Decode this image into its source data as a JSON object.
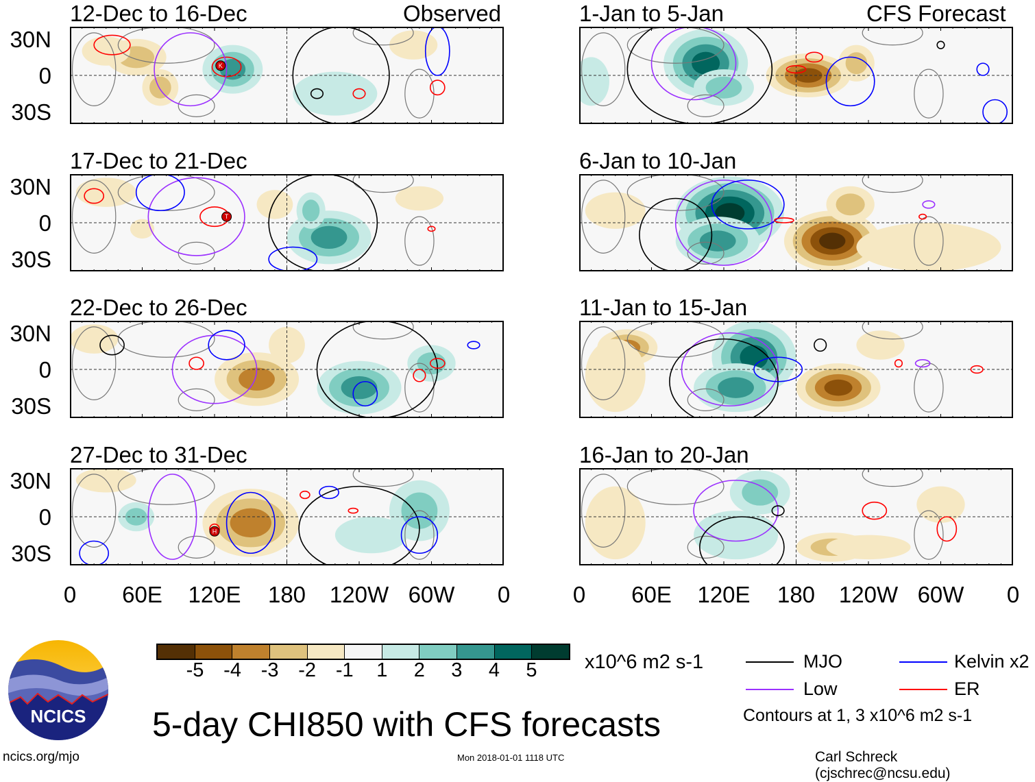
{
  "header": {
    "observed_label": "Observed",
    "forecast_label": "CFS Forecast"
  },
  "lat_labels": [
    "30N",
    "0",
    "30S"
  ],
  "lon_labels": [
    "0",
    "60E",
    "120E",
    "180",
    "120W",
    "60W",
    "0"
  ],
  "colors": {
    "levels": [
      "#543005",
      "#8c510a",
      "#bf812d",
      "#dfc27d",
      "#f6e8c3",
      "#f5f5f5",
      "#c7eae5",
      "#80cdc1",
      "#35978f",
      "#01665e",
      "#003c30"
    ],
    "mjo": "#000000",
    "low": "#9b30ff",
    "kelvin": "#0000ff",
    "er": "#ff0000",
    "land": "#777777"
  },
  "panels": [
    {
      "title": "12-Dec to 16-Dec",
      "blobs": [
        [
          55,
          15,
          25,
          15,
          -2
        ],
        [
          75,
          -10,
          15,
          15,
          -2
        ],
        [
          135,
          5,
          25,
          20,
          3
        ],
        [
          220,
          -15,
          35,
          18,
          1
        ],
        [
          285,
          25,
          20,
          12,
          -1
        ],
        [
          30,
          20,
          20,
          12,
          -1
        ]
      ],
      "contours": [
        [
          "er",
          130,
          7,
          12,
          8
        ],
        [
          "low",
          100,
          5,
          30,
          30
        ],
        [
          "mjo",
          225,
          0,
          40,
          40
        ],
        [
          "kelvin",
          305,
          20,
          10,
          20
        ],
        [
          "er",
          305,
          -10,
          6,
          6
        ],
        [
          "er",
          240,
          -15,
          5,
          4
        ],
        [
          "mjo",
          205,
          -15,
          5,
          4
        ],
        [
          "er",
          35,
          25,
          15,
          8
        ]
      ],
      "storms": [
        [
          125,
          8,
          "K"
        ]
      ]
    },
    {
      "title": "17-Dec to 21-Dec",
      "blobs": [
        [
          215,
          -12,
          35,
          22,
          3
        ],
        [
          200,
          10,
          12,
          15,
          2
        ],
        [
          30,
          25,
          25,
          12,
          -1
        ],
        [
          290,
          20,
          20,
          10,
          -1
        ],
        [
          60,
          -5,
          10,
          8,
          -1
        ],
        [
          170,
          15,
          15,
          12,
          -1
        ]
      ],
      "contours": [
        [
          "er",
          120,
          5,
          12,
          8
        ],
        [
          "low",
          105,
          5,
          40,
          32
        ],
        [
          "mjo",
          210,
          0,
          45,
          40
        ],
        [
          "kelvin",
          185,
          -30,
          20,
          10
        ],
        [
          "er",
          20,
          22,
          8,
          6
        ],
        [
          "kelvin",
          75,
          25,
          20,
          15
        ],
        [
          "er",
          300,
          -5,
          3,
          2
        ]
      ],
      "storms": [
        [
          130,
          5,
          "T"
        ]
      ]
    },
    {
      "title": "22-Dec to 26-Dec",
      "blobs": [
        [
          155,
          -8,
          35,
          22,
          -3
        ],
        [
          240,
          -15,
          35,
          22,
          3
        ],
        [
          300,
          5,
          20,
          15,
          2
        ],
        [
          20,
          25,
          20,
          12,
          -1
        ],
        [
          180,
          20,
          15,
          15,
          -1
        ]
      ],
      "contours": [
        [
          "low",
          120,
          0,
          35,
          28
        ],
        [
          "mjo",
          255,
          0,
          50,
          40
        ],
        [
          "kelvin",
          245,
          -20,
          10,
          10
        ],
        [
          "er",
          105,
          5,
          6,
          5
        ],
        [
          "er",
          305,
          5,
          6,
          4
        ],
        [
          "er",
          290,
          -5,
          5,
          5
        ],
        [
          "kelvin",
          335,
          20,
          5,
          3
        ],
        [
          "mjo",
          35,
          20,
          10,
          8
        ],
        [
          "kelvin",
          130,
          20,
          15,
          12
        ]
      ],
      "storms": []
    },
    {
      "title": "27-Dec to 31-Dec",
      "blobs": [
        [
          150,
          -5,
          40,
          28,
          -3
        ],
        [
          250,
          -15,
          30,
          15,
          1
        ],
        [
          290,
          5,
          25,
          25,
          2
        ],
        [
          55,
          0,
          15,
          12,
          2
        ],
        [
          30,
          30,
          25,
          10,
          -1
        ]
      ],
      "contours": [
        [
          "kelvin",
          150,
          -5,
          20,
          25
        ],
        [
          "low",
          85,
          0,
          20,
          35
        ],
        [
          "mjo",
          240,
          -10,
          50,
          35
        ],
        [
          "kelvin",
          290,
          -15,
          15,
          15
        ],
        [
          "kelvin",
          215,
          20,
          8,
          5
        ],
        [
          "er",
          195,
          18,
          4,
          3
        ],
        [
          "er",
          120,
          -10,
          4,
          4
        ],
        [
          "kelvin",
          20,
          -30,
          12,
          10
        ],
        [
          "er",
          235,
          5,
          4,
          2
        ]
      ],
      "storms": [
        [
          120,
          -12,
          "H"
        ]
      ]
    },
    {
      "title": "1-Jan to 5-Jan",
      "blobs": [
        [
          105,
          10,
          35,
          28,
          4
        ],
        [
          120,
          -10,
          25,
          15,
          2
        ],
        [
          190,
          0,
          35,
          18,
          -4
        ],
        [
          230,
          10,
          15,
          15,
          -2
        ],
        [
          10,
          -5,
          15,
          20,
          1
        ]
      ],
      "contours": [
        [
          "low",
          95,
          10,
          35,
          30
        ],
        [
          "mjo",
          100,
          5,
          60,
          45
        ],
        [
          "kelvin",
          225,
          -5,
          20,
          20
        ],
        [
          "kelvin",
          345,
          -30,
          10,
          10
        ],
        [
          "er",
          195,
          15,
          7,
          4
        ],
        [
          "er",
          180,
          5,
          8,
          3
        ],
        [
          "mjo",
          300,
          25,
          3,
          3
        ],
        [
          "kelvin",
          335,
          5,
          5,
          5
        ]
      ],
      "storms": []
    },
    {
      "title": "6-Jan to 10-Jan",
      "blobs": [
        [
          125,
          8,
          45,
          30,
          5
        ],
        [
          115,
          -15,
          35,
          20,
          3
        ],
        [
          210,
          -15,
          40,
          25,
          -5
        ],
        [
          225,
          15,
          20,
          15,
          -2
        ],
        [
          290,
          -20,
          60,
          20,
          -1
        ],
        [
          30,
          10,
          25,
          15,
          -1
        ]
      ],
      "contours": [
        [
          "low",
          120,
          0,
          40,
          35
        ],
        [
          "mjo",
          80,
          -10,
          30,
          30
        ],
        [
          "kelvin",
          140,
          15,
          30,
          20
        ],
        [
          "er",
          170,
          2,
          8,
          2
        ],
        [
          "er",
          285,
          5,
          3,
          2
        ],
        [
          "low",
          290,
          15,
          5,
          3
        ]
      ],
      "storms": []
    },
    {
      "title": "11-Jan to 15-Jan",
      "blobs": [
        [
          40,
          18,
          25,
          15,
          -3
        ],
        [
          145,
          10,
          35,
          30,
          4
        ],
        [
          130,
          -15,
          35,
          20,
          3
        ],
        [
          215,
          -15,
          35,
          20,
          -4
        ],
        [
          30,
          -5,
          25,
          30,
          -1
        ],
        [
          250,
          20,
          20,
          12,
          -1
        ]
      ],
      "contours": [
        [
          "low",
          125,
          0,
          40,
          30
        ],
        [
          "mjo",
          120,
          -10,
          45,
          35
        ],
        [
          "kelvin",
          165,
          0,
          20,
          10
        ],
        [
          "er",
          265,
          5,
          3,
          3
        ],
        [
          "er",
          330,
          0,
          5,
          3
        ],
        [
          "low",
          285,
          5,
          6,
          3
        ],
        [
          "mjo",
          200,
          20,
          5,
          5
        ]
      ],
      "storms": []
    },
    {
      "title": "16-Jan to 20-Jan",
      "blobs": [
        [
          150,
          20,
          25,
          18,
          2
        ],
        [
          130,
          -15,
          35,
          20,
          1
        ],
        [
          210,
          -25,
          30,
          12,
          -2
        ],
        [
          240,
          -25,
          35,
          10,
          -1
        ],
        [
          30,
          -5,
          25,
          30,
          -1
        ],
        [
          300,
          10,
          20,
          15,
          -1
        ]
      ],
      "contours": [
        [
          "low",
          130,
          5,
          35,
          25
        ],
        [
          "mjo",
          135,
          -25,
          35,
          25
        ],
        [
          "er",
          245,
          5,
          10,
          7
        ],
        [
          "er",
          305,
          -10,
          8,
          10
        ],
        [
          "mjo",
          165,
          5,
          5,
          4
        ]
      ],
      "storms": []
    }
  ],
  "colorbar": {
    "ticks": [
      "-5",
      "-4",
      "-3",
      "-2",
      "-1",
      "1",
      "2",
      "3",
      "4",
      "5"
    ],
    "units": "x10^6 m2 s-1"
  },
  "legend": {
    "mjo": "MJO",
    "kelvin": "Kelvin x2",
    "low": "Low",
    "er": "ER",
    "note": "Contours at 1, 3 x10^6 m2 s-1"
  },
  "footer": {
    "title": "5-day CHI850 with CFS forecasts",
    "logo": "NCICS",
    "url": "ncics.org/mjo",
    "timestamp": "Mon 2018-01-01 1118 UTC",
    "author": "Carl Schreck (cjschrec@ncsu.edu)"
  }
}
